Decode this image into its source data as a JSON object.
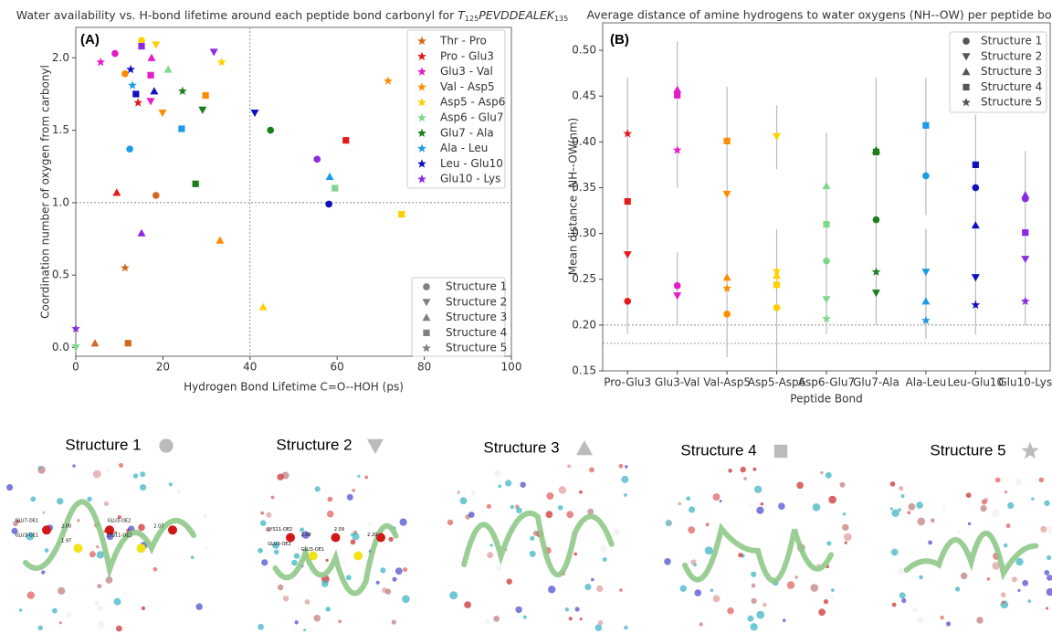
{
  "chart_data": [
    {
      "type": "scatter",
      "panel": "(A)",
      "title": "Water availability vs. H-bond lifetime around each peptide bond carbonyl for",
      "title_sequence": [
        "T",
        "125",
        "PEVDDEALEK",
        "135"
      ],
      "x_label": "Hydrogen Bond Lifetime C=O--HOH (ps)",
      "y_label": "Coordination number of oxygen from carbonyl",
      "xlim": [
        0,
        100
      ],
      "ylim": [
        -0.06,
        2.21
      ],
      "xticks": [
        0,
        20,
        40,
        60,
        80,
        100
      ],
      "yticks": [
        {
          "value": 0,
          "label": "0.0"
        },
        0.5,
        {
          "value": 1,
          "label": "1.0"
        },
        1.5,
        {
          "value": 2,
          "label": "2.0"
        }
      ],
      "reference_lines": {
        "x": 40,
        "y": 1.0
      },
      "marker_color": "#808080",
      "markers": [
        {
          "name": "Structure 1",
          "shape": "circle"
        },
        {
          "name": "Structure 2",
          "shape": "down"
        },
        {
          "name": "Structure 3",
          "shape": "up"
        },
        {
          "name": "Structure 4",
          "shape": "square"
        },
        {
          "name": "Structure 5",
          "shape": "star"
        }
      ],
      "series": [
        {
          "name": "Thr - Pro",
          "color": "#d2691e",
          "x": [
            18.4,
            null,
            4.4,
            12,
            11.3
          ],
          "y": [
            1.05,
            null,
            0.03,
            0.03,
            0.55
          ]
        },
        {
          "name": "Pro - Glu3",
          "color": "#e41a1c",
          "x": [
            null,
            null,
            9.4,
            62,
            14.3
          ],
          "y": [
            null,
            null,
            1.07,
            1.43,
            1.69
          ]
        },
        {
          "name": "Glu3 - Val",
          "color": "#e31ec6",
          "x": [
            9,
            17.2,
            17.4,
            17.2,
            5.7
          ],
          "y": [
            2.03,
            1.7,
            2.0,
            1.88,
            1.97
          ]
        },
        {
          "name": "Val - Asp5",
          "color": "#ff8c00",
          "x": [
            11.3,
            19.9,
            33.1,
            29.8,
            71.7
          ],
          "y": [
            1.89,
            1.62,
            0.74,
            1.74,
            1.84
          ]
        },
        {
          "name": "Asp5 - Asp6",
          "color": "#ffd000",
          "x": [
            15.1,
            18.4,
            43,
            74.8,
            33.5
          ],
          "y": [
            2.12,
            2.09,
            0.28,
            0.92,
            1.97
          ]
        },
        {
          "name": "Asp6 - Glu7",
          "color": "#7fd88c",
          "x": [
            null,
            0,
            21.2,
            59.5,
            null
          ],
          "y": [
            null,
            0,
            1.92,
            1.1,
            null
          ]
        },
        {
          "name": "Glu7 - Ala",
          "color": "#1a7f1a",
          "x": [
            44.7,
            29.1,
            null,
            27.5,
            24.5
          ],
          "y": [
            1.5,
            1.64,
            null,
            1.13,
            1.77
          ]
        },
        {
          "name": "Ala - Leu",
          "color": "#1e9be6",
          "x": [
            12.4,
            null,
            58.3,
            24.3,
            13
          ],
          "y": [
            1.37,
            null,
            1.18,
            1.51,
            1.81
          ]
        },
        {
          "name": "Leu - Glu10",
          "color": "#1010c0",
          "x": [
            58.1,
            41.1,
            18,
            13.8,
            12.6
          ],
          "y": [
            0.99,
            1.62,
            1.77,
            1.75,
            1.92
          ]
        },
        {
          "name": "Glu10 - Lys",
          "color": "#8a2be2",
          "x": [
            55.4,
            31.7,
            15.1,
            15.1,
            0
          ],
          "y": [
            1.3,
            2.04,
            0.79,
            2.08,
            0.13
          ]
        }
      ]
    },
    {
      "type": "dot",
      "panel": "(B)",
      "title": "Average distance of amine hydrogens to water oxygens (NH--OW) per peptide bond",
      "x_label": "Peptide Bond",
      "y_label": "Mean distance -NH--OW(nm)",
      "categories": [
        "Pro-Glu3",
        "Glu3-Val",
        "Val-Asp5",
        "Asp5-Asp6",
        "Asp6-Glu7",
        "Glu7-Ala",
        "Ala-Leu",
        "Leu-Glu10",
        "Glu10-Lys"
      ],
      "point_colors": [
        "#e41a1c",
        "#e31ec6",
        "#ff8c00",
        "#ffd000",
        "#7fd88c",
        "#1a7f1a",
        "#1e9be6",
        "#1010c0",
        "#8a2be2"
      ],
      "ylim": [
        0.15,
        0.53
      ],
      "yticks": [
        0.15,
        {
          "value": 0.2,
          "label": "0.20"
        },
        0.25,
        {
          "value": 0.3,
          "label": "0.30"
        },
        0.35,
        {
          "value": 0.4,
          "label": "0.40"
        },
        0.45,
        {
          "value": 0.5,
          "label": "0.50"
        }
      ],
      "reference_lines": [
        0.2,
        0.18
      ],
      "error_ranges": [
        [
          [
            0.19,
            0.47
          ]
        ],
        [
          [
            0.35,
            0.51
          ],
          [
            0.2,
            0.28
          ]
        ],
        [
          [
            0.165,
            0.46
          ]
        ],
        [
          [
            0.37,
            0.44
          ],
          [
            0.15,
            0.305
          ]
        ],
        [
          [
            0.19,
            0.41
          ]
        ],
        [
          [
            0.2,
            0.47
          ]
        ],
        [
          [
            0.32,
            0.47
          ],
          [
            0.185,
            0.305
          ]
        ],
        [
          [
            0.19,
            0.43
          ]
        ],
        [
          [
            0.2,
            0.39
          ]
        ]
      ],
      "marker_color": "#555555",
      "series": [
        {
          "name": "Structure 1",
          "shape": "circle",
          "values": [
            0.226,
            0.243,
            0.212,
            0.219,
            0.27,
            0.315,
            0.363,
            0.35,
            0.338
          ]
        },
        {
          "name": "Structure 2",
          "shape": "down",
          "values": [
            0.277,
            0.232,
            0.343,
            0.406,
            0.228,
            0.235,
            0.258,
            0.252,
            0.272
          ]
        },
        {
          "name": "Structure 3",
          "shape": "up",
          "values": [
            null,
            0.457,
            0.252,
            0.254,
            0.352,
            0.391,
            0.226,
            0.309,
            0.342
          ]
        },
        {
          "name": "Structure 4",
          "shape": "square",
          "values": [
            0.335,
            0.451,
            0.401,
            0.244,
            0.31,
            0.389,
            0.418,
            0.375,
            0.301
          ]
        },
        {
          "name": "Structure 5",
          "shape": "star",
          "values": [
            0.409,
            0.391,
            0.24,
            0.259,
            0.207,
            0.258,
            0.205,
            0.222,
            0.226
          ]
        }
      ]
    }
  ],
  "structures": [
    {
      "label": "Structure 1",
      "shape": "circle",
      "atom_labels": [
        "GLU7-OE1",
        "2.00",
        "GLU3-OE2",
        "2.07",
        "GLU3-OE1",
        "1.97",
        "LYS11-OE1"
      ]
    },
    {
      "label": "Structure 2",
      "shape": "down",
      "atom_labels": [
        "LYS11-OE2",
        "2.08",
        "2.09",
        "2.20",
        "GLU3-OE2",
        "GLU3-OE1"
      ]
    },
    {
      "label": "Structure 3",
      "shape": "up",
      "atom_labels": []
    },
    {
      "label": "Structure 4",
      "shape": "square",
      "atom_labels": []
    },
    {
      "label": "Structure 5",
      "shape": "star",
      "atom_labels": []
    }
  ],
  "structure_icon_color": "#bbbbbb"
}
